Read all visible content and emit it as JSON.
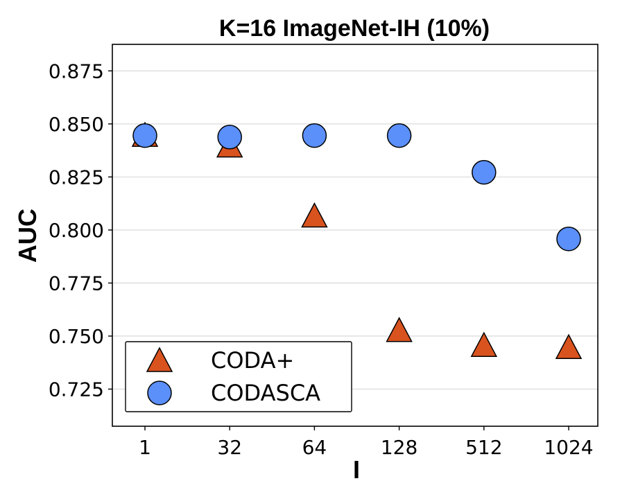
{
  "chart_data": {
    "type": "scatter",
    "title": "K=16 ImageNet-IH (10%)",
    "xlabel": "I",
    "ylabel": "AUC",
    "categories": [
      "1",
      "32",
      "64",
      "128",
      "512",
      "1024"
    ],
    "ylim": [
      0.7075,
      0.8875
    ],
    "yticks": [
      "0.725",
      "0.750",
      "0.775",
      "0.800",
      "0.825",
      "0.850",
      "0.875"
    ],
    "grid": "y",
    "legend_position": "lower-left",
    "series": [
      {
        "name": "CODA+",
        "marker": "triangle",
        "color": "#d9531e",
        "values": [
          0.844,
          0.839,
          0.806,
          0.752,
          0.745,
          0.744
        ]
      },
      {
        "name": "CODASCA",
        "marker": "circle",
        "color": "#5b8ff9",
        "values": [
          0.8445,
          0.8438,
          0.8445,
          0.8445,
          0.8272,
          0.7958
        ]
      }
    ]
  }
}
